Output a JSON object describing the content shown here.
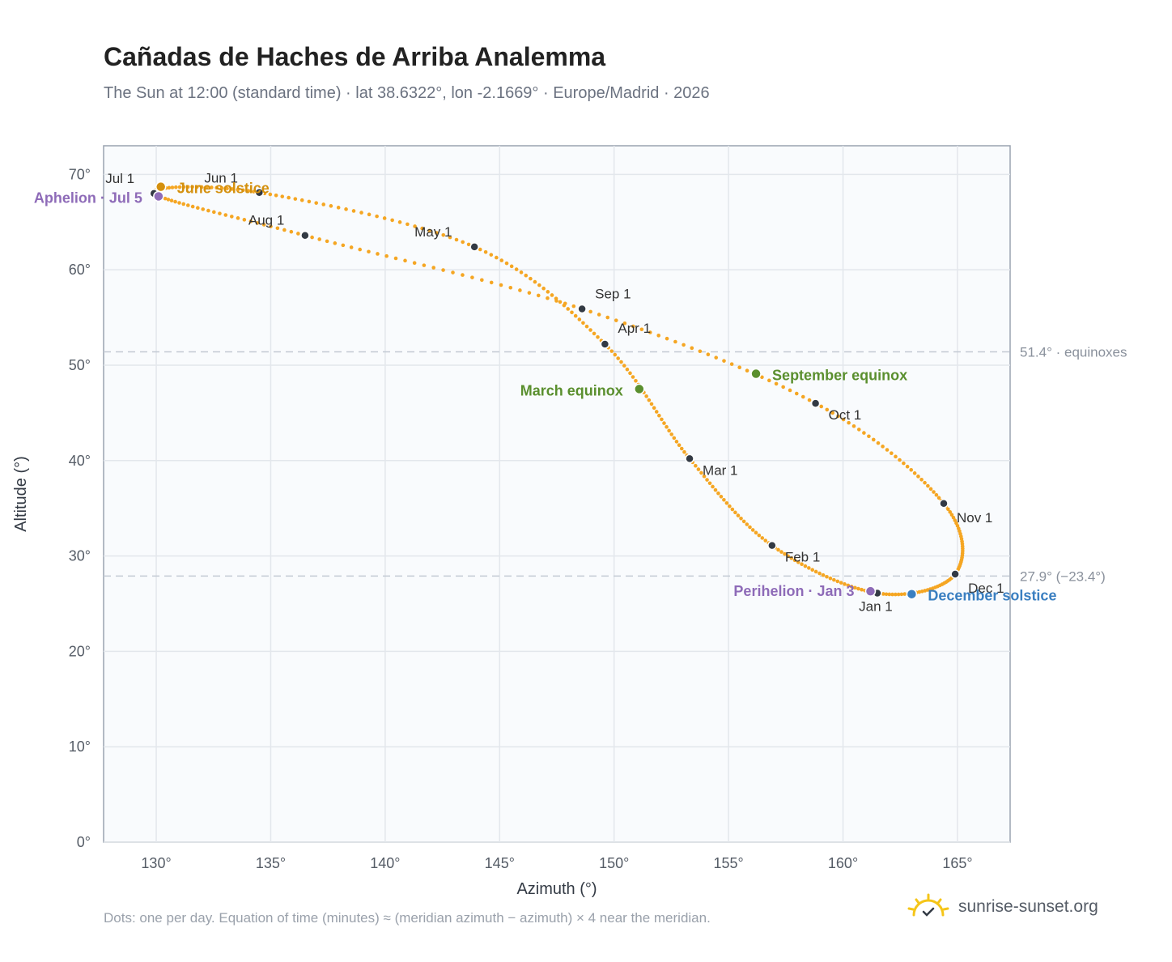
{
  "title": "Cañadas de Haches de Arriba Analemma",
  "subtitle": "The Sun at 12:00 (standard time) · lat 38.6322°, lon -2.1669° · Europe/Madrid · 2026",
  "footnote": "Dots: one per day. Equation of time (minutes) ≈ (meridian azimuth − azimuth) × 4 near the meridian.",
  "brand": {
    "text": "sunrise-sunset.org",
    "icon": "sun-icon"
  },
  "colors": {
    "curve": "#f5a623",
    "month_dot": "#333a44",
    "june_solstice": "#d4900e",
    "december_solstice": "#3a7fc1",
    "equinox": "#5a8f2e",
    "apsis": "#8e6bb8",
    "reference_line": "#c3cad4",
    "plot_bg": "#f9fbfd",
    "grid": "#e3e7ec"
  },
  "chart_data": {
    "type": "scatter",
    "xlabel": "Azimuth (°)",
    "ylabel": "Altitude (°)",
    "xlim": [
      127.7,
      167.3
    ],
    "ylim": [
      0,
      73
    ],
    "x_ticks": [
      130,
      135,
      140,
      145,
      150,
      155,
      160,
      165
    ],
    "x_tick_labels": [
      "130°",
      "135°",
      "140°",
      "145°",
      "150°",
      "155°",
      "160°",
      "165°"
    ],
    "y_ticks": [
      0,
      10,
      20,
      30,
      40,
      50,
      60,
      70
    ],
    "y_tick_labels": [
      "0°",
      "10°",
      "20°",
      "30°",
      "40°",
      "50°",
      "60°",
      "70°"
    ],
    "grid": true,
    "month_points": [
      {
        "label": "Jan 1",
        "az": 161.5,
        "alt": 26.1
      },
      {
        "label": "Feb 1",
        "az": 156.9,
        "alt": 31.1
      },
      {
        "label": "Mar 1",
        "az": 153.3,
        "alt": 40.2
      },
      {
        "label": "Apr 1",
        "az": 149.6,
        "alt": 52.2
      },
      {
        "label": "May 1",
        "az": 143.9,
        "alt": 62.4
      },
      {
        "label": "Jun 1",
        "az": 134.5,
        "alt": 68.1
      },
      {
        "label": "Jul 1",
        "az": 129.9,
        "alt": 68.0
      },
      {
        "label": "Aug 1",
        "az": 136.5,
        "alt": 63.6
      },
      {
        "label": "Sep 1",
        "az": 148.6,
        "alt": 55.9
      },
      {
        "label": "Oct 1",
        "az": 158.8,
        "alt": 46.0
      },
      {
        "label": "Nov 1",
        "az": 164.4,
        "alt": 35.5
      },
      {
        "label": "Dec 1",
        "az": 164.9,
        "alt": 28.1
      }
    ],
    "events": [
      {
        "label": "June solstice",
        "az": 130.2,
        "alt": 68.7,
        "color_key": "june_solstice"
      },
      {
        "label": "Aphelion · Jul 5",
        "az": 130.1,
        "alt": 67.7,
        "color_key": "apsis"
      },
      {
        "label": "March equinox",
        "az": 151.1,
        "alt": 47.5,
        "color_key": "equinox"
      },
      {
        "label": "September equinox",
        "az": 156.2,
        "alt": 49.1,
        "color_key": "equinox"
      },
      {
        "label": "Perihelion · Jan 3",
        "az": 161.2,
        "alt": 26.3,
        "color_key": "apsis"
      },
      {
        "label": "December solstice",
        "az": 163.0,
        "alt": 26.0,
        "color_key": "december_solstice"
      }
    ],
    "reference_lines": [
      {
        "label": "51.4° · equinoxes",
        "alt": 51.4
      },
      {
        "label": "27.9° (−23.4°)",
        "alt": 27.9
      }
    ]
  }
}
